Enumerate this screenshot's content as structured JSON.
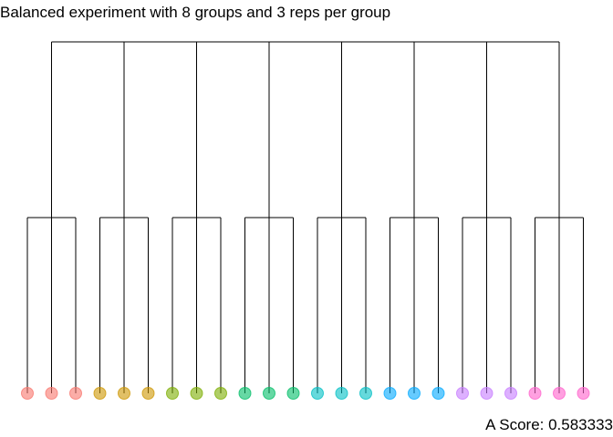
{
  "title": "Balanced experiment with 8 groups and 3 reps per group",
  "score_text": "A Score: 0.583333",
  "colors": {
    "line": "#000000",
    "groups": [
      "#F8766D",
      "#CD9600",
      "#7CAE00",
      "#00BE67",
      "#00BFC4",
      "#00A9FF",
      "#C77CFF",
      "#FF61CC"
    ]
  },
  "chart_data": {
    "type": "tree",
    "groups": 8,
    "reps_per_group": 3
  }
}
